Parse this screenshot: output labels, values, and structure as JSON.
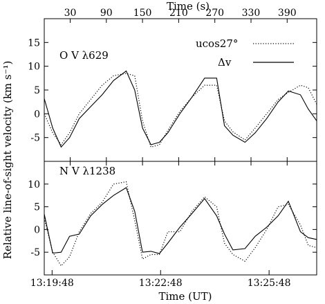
{
  "chart_data": {
    "type": "line",
    "top_axis": {
      "label": "Time (s)",
      "ticks": [
        30,
        90,
        150,
        210,
        270,
        330,
        390
      ]
    },
    "bottom_axis": {
      "label": "Time (UT)",
      "ticks": [
        "13:19:48",
        "13:22:48",
        "13:25:48"
      ],
      "tick_seconds": [
        0,
        180,
        360
      ]
    },
    "ylabel": "Relative line-of-sight velocity (km s⁻¹)",
    "xlim": [
      -13,
      439
    ],
    "legend": {
      "position": "top-right",
      "items": [
        {
          "label": "ucos27°",
          "style": "dotted"
        },
        {
          "label": "Δv",
          "style": "solid"
        }
      ]
    },
    "panels": [
      {
        "label": "O V λ629",
        "ylim": [
          -10,
          20
        ],
        "yticks": [
          -5,
          0,
          5,
          10,
          15
        ],
        "series": [
          {
            "name": "Δv",
            "style": "solid",
            "x": [
              -13,
              1,
              15,
              29,
              45,
              64,
              83,
              102,
              123,
              137,
              150,
              164,
              178,
              192,
              212,
              232,
              253,
              273,
              286,
              300,
              320,
              337,
              356,
              375,
              392,
              412,
              425,
              439
            ],
            "y": [
              3.2,
              -3,
              -7,
              -5,
              -1,
              1.5,
              4,
              7,
              9,
              5,
              -3,
              -6.5,
              -6,
              -4,
              0,
              3.5,
              7.5,
              7.5,
              -2.5,
              -4.5,
              -6,
              -4,
              -1,
              2.5,
              4.8,
              4,
              1,
              -1.5
            ]
          },
          {
            "name": "ucos27°",
            "style": "dotted",
            "x": [
              -13,
              1,
              15,
              29,
              45,
              64,
              83,
              102,
              123,
              137,
              150,
              164,
              178,
              192,
              212,
              232,
              253,
              273,
              286,
              300,
              320,
              337,
              356,
              375,
              392,
              412,
              425,
              439
            ],
            "y": [
              0,
              -4,
              -6.5,
              -4,
              0,
              3,
              6,
              8,
              8.5,
              8,
              -1.5,
              -7,
              -6.5,
              -3.5,
              0.5,
              3.5,
              6,
              6,
              -1.5,
              -3.8,
              -5.5,
              -3,
              0,
              3,
              4.5,
              6,
              5.5,
              2
            ]
          }
        ]
      },
      {
        "label": "N V λ1238",
        "ylim": [
          -10,
          15
        ],
        "yticks": [
          -5,
          0,
          5,
          10
        ],
        "series": [
          {
            "name": "Δv",
            "style": "solid",
            "x": [
              -13,
              1,
              15,
              29,
              45,
              64,
              83,
              102,
              123,
              137,
              150,
              164,
              178,
              192,
              212,
              232,
              253,
              273,
              286,
              300,
              320,
              337,
              356,
              375,
              392,
              412,
              425,
              439
            ],
            "y": [
              3.4,
              -5.2,
              -5,
              -1.5,
              -1,
              3,
              5.5,
              7.5,
              9.2,
              4,
              -5,
              -4.8,
              -5.3,
              -3,
              0.5,
              3.5,
              6.8,
              3,
              -1,
              -4.5,
              -4.2,
              -1.5,
              0.5,
              3,
              6.2,
              -0.5,
              -1.8,
              -2.2
            ]
          },
          {
            "name": "ucos27°",
            "style": "dotted",
            "x": [
              -13,
              1,
              15,
              29,
              45,
              64,
              83,
              102,
              123,
              137,
              150,
              164,
              178,
              192,
              212,
              232,
              253,
              273,
              286,
              300,
              320,
              337,
              356,
              375,
              392,
              412,
              425,
              439
            ],
            "y": [
              2.5,
              -5,
              -8,
              -6,
              -0.5,
              3.5,
              6,
              10,
              10.5,
              2,
              -6.5,
              -5.5,
              -5.5,
              -0.5,
              -0.5,
              4,
              7.2,
              5,
              -3,
              -5.5,
              -7,
              -4,
              0,
              5,
              5.5,
              1,
              -3.5,
              -4
            ]
          }
        ]
      }
    ]
  }
}
